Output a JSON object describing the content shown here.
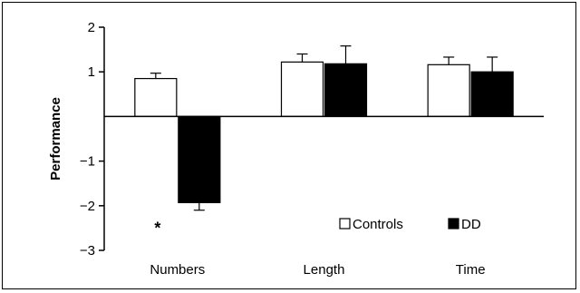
{
  "chart_data": {
    "type": "bar",
    "categories": [
      "Numbers",
      "Length",
      "Time"
    ],
    "series": [
      {
        "name": "Controls",
        "values": [
          0.85,
          1.22,
          1.16
        ],
        "errors": [
          0.12,
          0.18,
          0.17
        ],
        "color": "#ffffff"
      },
      {
        "name": "DD",
        "values": [
          -1.93,
          1.18,
          1.0
        ],
        "errors": [
          0.17,
          0.4,
          0.33
        ],
        "color": "#000000"
      }
    ],
    "ylabel": "Performance",
    "ylim": [
      -3,
      2
    ],
    "yticks": [
      2,
      1,
      -1,
      -2,
      -3
    ],
    "ytick_labels": [
      "2",
      "1",
      "−1",
      "−2",
      "−3"
    ],
    "grid": false,
    "legend": {
      "placement": "bottom-right",
      "entries": [
        "Controls",
        "DD"
      ]
    },
    "annotations": [
      {
        "text": "*",
        "category": "Numbers"
      }
    ]
  }
}
